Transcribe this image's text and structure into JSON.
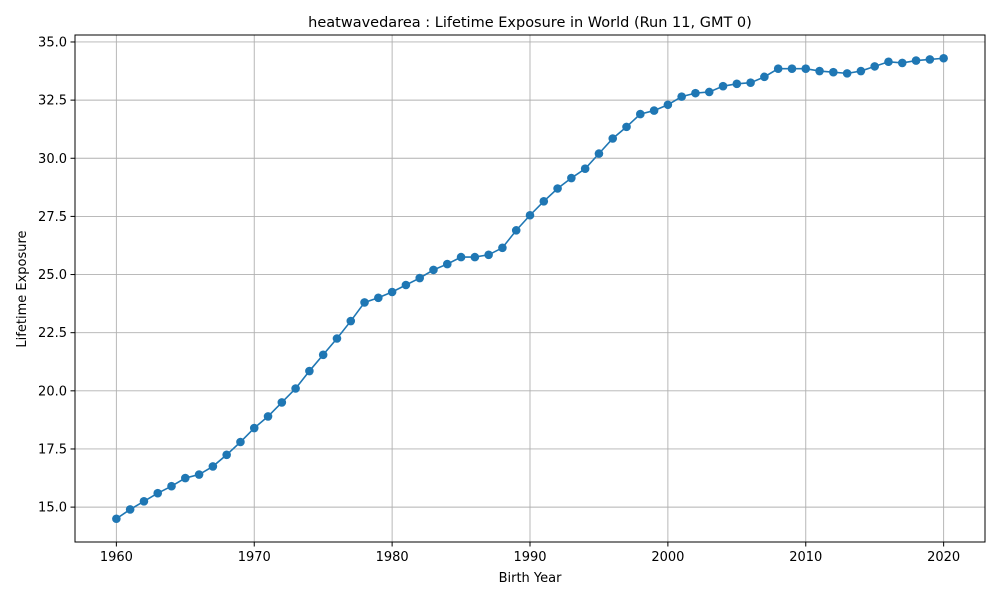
{
  "chart_data": {
    "type": "line",
    "title": "heatwavedarea : Lifetime Exposure in World (Run 11, GMT 0)",
    "xlabel": "Birth Year",
    "ylabel": "Lifetime Exposure",
    "xlim": [
      1957,
      2023
    ],
    "ylim": [
      13.5,
      35.3
    ],
    "xticks": [
      1960,
      1970,
      1980,
      1990,
      2000,
      2010,
      2020
    ],
    "yticks": [
      15.0,
      17.5,
      20.0,
      22.5,
      25.0,
      27.5,
      30.0,
      32.5,
      35.0
    ],
    "xtick_labels": [
      "1960",
      "1970",
      "1980",
      "1990",
      "2000",
      "2010",
      "2020"
    ],
    "ytick_labels": [
      "15.0",
      "17.5",
      "20.0",
      "22.5",
      "25.0",
      "27.5",
      "30.0",
      "32.5",
      "35.0"
    ],
    "grid": true,
    "legend": false,
    "series": [
      {
        "color": "#1f77b4",
        "marker": "circle",
        "x": [
          1960,
          1961,
          1962,
          1963,
          1964,
          1965,
          1966,
          1967,
          1968,
          1969,
          1970,
          1971,
          1972,
          1973,
          1974,
          1975,
          1976,
          1977,
          1978,
          1979,
          1980,
          1981,
          1982,
          1983,
          1984,
          1985,
          1986,
          1987,
          1988,
          1989,
          1990,
          1991,
          1992,
          1993,
          1994,
          1995,
          1996,
          1997,
          1998,
          1999,
          2000,
          2001,
          2002,
          2003,
          2004,
          2005,
          2006,
          2007,
          2008,
          2009,
          2010,
          2011,
          2012,
          2013,
          2014,
          2015,
          2016,
          2017,
          2018,
          2019,
          2020
        ],
        "values": [
          14.5,
          14.9,
          15.25,
          15.6,
          15.9,
          16.25,
          16.4,
          16.75,
          17.25,
          17.8,
          18.4,
          18.9,
          19.5,
          20.1,
          20.85,
          21.55,
          22.25,
          23.0,
          23.8,
          24.0,
          24.25,
          24.55,
          24.85,
          25.2,
          25.45,
          25.75,
          25.75,
          25.85,
          26.15,
          26.9,
          27.55,
          28.15,
          28.7,
          29.15,
          29.55,
          30.2,
          30.85,
          31.35,
          31.9,
          32.05,
          32.3,
          32.65,
          32.8,
          32.85,
          33.1,
          33.2,
          33.25,
          33.5,
          33.85,
          33.85,
          33.85,
          33.75,
          33.7,
          33.65,
          33.75,
          33.95,
          34.15,
          34.1,
          34.2,
          34.25,
          34.3
        ]
      }
    ]
  }
}
